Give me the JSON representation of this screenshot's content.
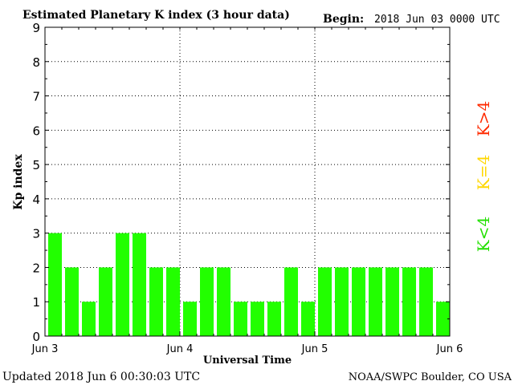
{
  "header": {
    "title": "Estimated Planetary K index (3 hour data)",
    "begin_label": "Begin:",
    "begin_value": "2018 Jun 03 0000 UTC"
  },
  "footer": {
    "updated": "Updated 2018 Jun  6 00:30:03 UTC",
    "source": "NOAA/SWPC Boulder, CO USA"
  },
  "legend": [
    {
      "label": "K>4",
      "color": "#ff2a00"
    },
    {
      "label": "K=4",
      "color": "#ffd700"
    },
    {
      "label": "K<4",
      "color": "#22e000"
    }
  ],
  "chart_data": {
    "type": "bar",
    "title": "Estimated Planetary K index (3 hour data)",
    "xlabel": "Universal Time",
    "ylabel": "Kp index",
    "ylim": [
      0,
      9
    ],
    "yticks": [
      "0",
      "1",
      "2",
      "3",
      "4",
      "5",
      "6",
      "7",
      "8",
      "9"
    ],
    "xticks": [
      "Jun 3",
      "Jun 4",
      "Jun 5",
      "Jun 6"
    ],
    "grid": true,
    "bar_color": "#22ff00",
    "values": [
      3,
      2,
      1,
      2,
      3,
      3,
      2,
      2,
      1,
      2,
      2,
      1,
      1,
      1,
      2,
      1,
      2,
      2,
      2,
      2,
      2,
      2,
      2,
      1
    ]
  }
}
